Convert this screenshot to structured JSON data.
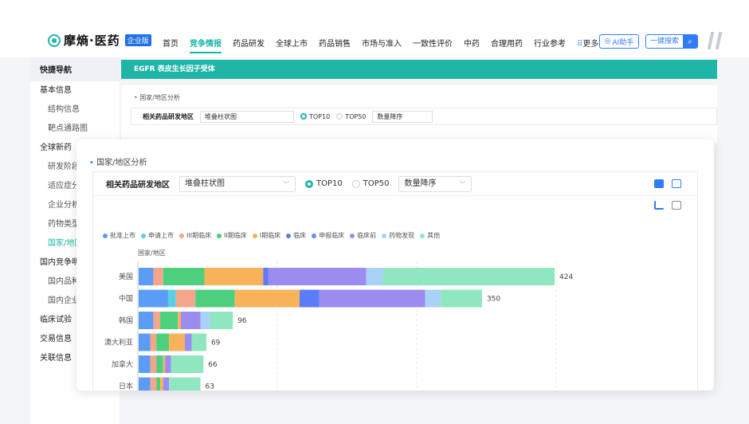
{
  "brand": {
    "name": "摩熵·医药",
    "badge": "企业版"
  },
  "nav": [
    {
      "label": "首页",
      "active": false
    },
    {
      "label": "竞争情报",
      "active": true
    },
    {
      "label": "药品研发",
      "active": false
    },
    {
      "label": "全球上市",
      "active": false
    },
    {
      "label": "药品销售",
      "active": false
    },
    {
      "label": "市场与准入",
      "active": false
    },
    {
      "label": "一致性评价",
      "active": false
    },
    {
      "label": "中药",
      "active": false
    },
    {
      "label": "合理用药",
      "active": false
    },
    {
      "label": "行业参考",
      "active": false
    },
    {
      "label": "更多",
      "active": false
    }
  ],
  "header": {
    "ai_label": "AI助手",
    "search_label": "一键搜索",
    "search_icon": "search-icon",
    "grid_icon": "grid-icon"
  },
  "sidebar": {
    "title": "快捷导航",
    "items": [
      {
        "label": "基本信息",
        "type": "group"
      },
      {
        "label": "结构信息",
        "type": "sub"
      },
      {
        "label": "靶点通路图",
        "type": "sub"
      },
      {
        "label": "全球新药",
        "type": "group"
      },
      {
        "label": "研发阶段分",
        "type": "sub"
      },
      {
        "label": "适应症分布",
        "type": "sub"
      },
      {
        "label": "企业分析",
        "type": "sub"
      },
      {
        "label": "药物类型分",
        "type": "sub"
      },
      {
        "label": "国家/地区",
        "type": "sub",
        "active": true
      },
      {
        "label": "国内竞争明细",
        "type": "group"
      },
      {
        "label": "国内品种分",
        "type": "sub"
      },
      {
        "label": "国内企业分",
        "type": "sub"
      },
      {
        "label": "临床试验",
        "type": "group"
      },
      {
        "label": "交易信息",
        "type": "group"
      },
      {
        "label": "关联信息",
        "type": "group"
      }
    ]
  },
  "content": {
    "banner": "EGFR  表皮生长因子受体",
    "section": "国家/地区分析",
    "filter_label": "相关药品研发地区",
    "chart_type": "堆叠柱状图",
    "radio": [
      {
        "label": "TOP10",
        "on": true
      },
      {
        "label": "TOP50",
        "on": false
      }
    ],
    "sort": "数量降序",
    "y_axis_title": "国家/地区"
  },
  "colors": {
    "accent": "#1fb6a8",
    "link": "#2f7cf6"
  },
  "chart_data": {
    "type": "bar",
    "orientation": "horizontal",
    "stacked": true,
    "legend_position": "top",
    "ylabel": "国家/地区",
    "categories": [
      "美国",
      "中国",
      "韩国",
      "澳大利亚",
      "加拿大",
      "日本"
    ],
    "totals": [
      424,
      350,
      96,
      69,
      66,
      63
    ],
    "series": [
      {
        "name": "批准上市",
        "color": "#5b9cf6",
        "values": [
          15,
          30,
          15,
          12,
          12,
          12
        ]
      },
      {
        "name": "申请上市",
        "color": "#5ad0e0",
        "values": [
          0,
          8,
          0,
          0,
          0,
          0
        ]
      },
      {
        "name": "III期临床",
        "color": "#f5a58a",
        "values": [
          10,
          20,
          7,
          6,
          6,
          6
        ]
      },
      {
        "name": "II期临床",
        "color": "#4cd07d",
        "values": [
          42,
          40,
          18,
          13,
          7,
          4
        ]
      },
      {
        "name": "I期临床",
        "color": "#f8b25a",
        "values": [
          60,
          66,
          3,
          16,
          2,
          3
        ]
      },
      {
        "name": "临床",
        "color": "#5b7cf6",
        "values": [
          5,
          20,
          0,
          0,
          0,
          0
        ]
      },
      {
        "name": "申报临床",
        "color": "#6e8af7",
        "values": [
          0,
          0,
          0,
          0,
          0,
          0
        ]
      },
      {
        "name": "临床前",
        "color": "#9d8cf0",
        "values": [
          100,
          108,
          20,
          7,
          6,
          6
        ]
      },
      {
        "name": "药物发现",
        "color": "#a8d2f7",
        "values": [
          17,
          16,
          10,
          0,
          0,
          0
        ]
      },
      {
        "name": "其他",
        "color": "#8ee7be",
        "values": [
          175,
          42,
          23,
          15,
          33,
          32
        ]
      }
    ]
  }
}
